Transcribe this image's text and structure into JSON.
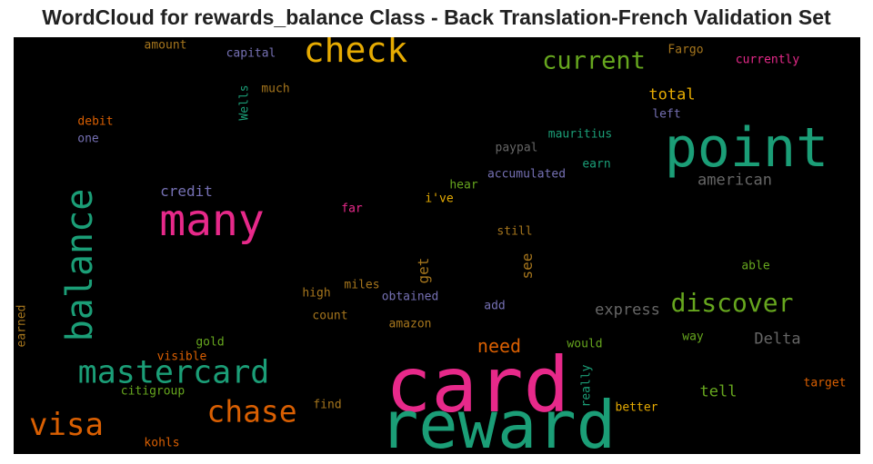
{
  "title": "WordCloud for rewards_balance Class - Back Translation-French Validation Set",
  "words": [
    {
      "text": "card",
      "color": "#e7298a",
      "size": 84
    },
    {
      "text": "reward",
      "color": "#1b9e77",
      "size": 72
    },
    {
      "text": "point",
      "color": "#1b9e77",
      "size": 60
    },
    {
      "text": "many",
      "color": "#e7298a",
      "size": 48
    },
    {
      "text": "balance",
      "color": "#1b9e77",
      "size": 40,
      "vertical": true
    },
    {
      "text": "check",
      "color": "#e6ab02",
      "size": 38
    },
    {
      "text": "mastercard",
      "color": "#1b9e77",
      "size": 35
    },
    {
      "text": "visa",
      "color": "#d95f02",
      "size": 34
    },
    {
      "text": "chase",
      "color": "#d95f02",
      "size": 33
    },
    {
      "text": "discover",
      "color": "#66a61e",
      "size": 28
    },
    {
      "text": "current",
      "color": "#66a61e",
      "size": 27
    },
    {
      "text": "need",
      "color": "#d95f02",
      "size": 20
    },
    {
      "text": "american",
      "color": "#666666",
      "size": 17
    },
    {
      "text": "express",
      "color": "#666666",
      "size": 17
    },
    {
      "text": "Delta",
      "color": "#666666",
      "size": 17
    },
    {
      "text": "total",
      "color": "#e6ab02",
      "size": 17
    },
    {
      "text": "tell",
      "color": "#66a61e",
      "size": 17
    },
    {
      "text": "credit",
      "color": "#7570b3",
      "size": 16
    },
    {
      "text": "get",
      "color": "#a6761d",
      "size": 16,
      "vertical": true
    },
    {
      "text": "see",
      "color": "#a6761d",
      "size": 16,
      "vertical": true
    },
    {
      "text": "capital",
      "color": "#7570b3",
      "size": 13
    },
    {
      "text": "amount",
      "color": "#a6761d",
      "size": 13
    },
    {
      "text": "Fargo",
      "color": "#a6761d",
      "size": 13
    },
    {
      "text": "currently",
      "color": "#e7298a",
      "size": 13
    },
    {
      "text": "Wells",
      "color": "#1b9e77",
      "size": 13,
      "vertical": true
    },
    {
      "text": "much",
      "color": "#a6761d",
      "size": 13
    },
    {
      "text": "debit",
      "color": "#d95f02",
      "size": 13
    },
    {
      "text": "one",
      "color": "#7570b3",
      "size": 13
    },
    {
      "text": "left",
      "color": "#7570b3",
      "size": 13
    },
    {
      "text": "mauritius",
      "color": "#1b9e77",
      "size": 13
    },
    {
      "text": "paypal",
      "color": "#666666",
      "size": 13
    },
    {
      "text": "earn",
      "color": "#1b9e77",
      "size": 13
    },
    {
      "text": "accumulated",
      "color": "#7570b3",
      "size": 13
    },
    {
      "text": "hear",
      "color": "#66a61e",
      "size": 13
    },
    {
      "text": "i've",
      "color": "#e6ab02",
      "size": 13
    },
    {
      "text": "far",
      "color": "#e7298a",
      "size": 13
    },
    {
      "text": "still",
      "color": "#a6761d",
      "size": 13
    },
    {
      "text": "able",
      "color": "#66a61e",
      "size": 13
    },
    {
      "text": "miles",
      "color": "#a6761d",
      "size": 13
    },
    {
      "text": "high",
      "color": "#a6761d",
      "size": 13
    },
    {
      "text": "obtained",
      "color": "#7570b3",
      "size": 13
    },
    {
      "text": "add",
      "color": "#7570b3",
      "size": 13
    },
    {
      "text": "count",
      "color": "#a6761d",
      "size": 13
    },
    {
      "text": "amazon",
      "color": "#a6761d",
      "size": 13
    },
    {
      "text": "earned",
      "color": "#a6761d",
      "size": 13,
      "vertical": true
    },
    {
      "text": "gold",
      "color": "#66a61e",
      "size": 13
    },
    {
      "text": "would",
      "color": "#66a61e",
      "size": 13
    },
    {
      "text": "way",
      "color": "#66a61e",
      "size": 13
    },
    {
      "text": "visible",
      "color": "#d95f02",
      "size": 13
    },
    {
      "text": "citigroup",
      "color": "#66a61e",
      "size": 13
    },
    {
      "text": "really",
      "color": "#1b9e77",
      "size": 13,
      "vertical": true
    },
    {
      "text": "target",
      "color": "#d95f02",
      "size": 13
    },
    {
      "text": "find",
      "color": "#a6761d",
      "size": 13
    },
    {
      "text": "better",
      "color": "#e6ab02",
      "size": 13
    },
    {
      "text": "kohls",
      "color": "#d95f02",
      "size": 13
    }
  ]
}
